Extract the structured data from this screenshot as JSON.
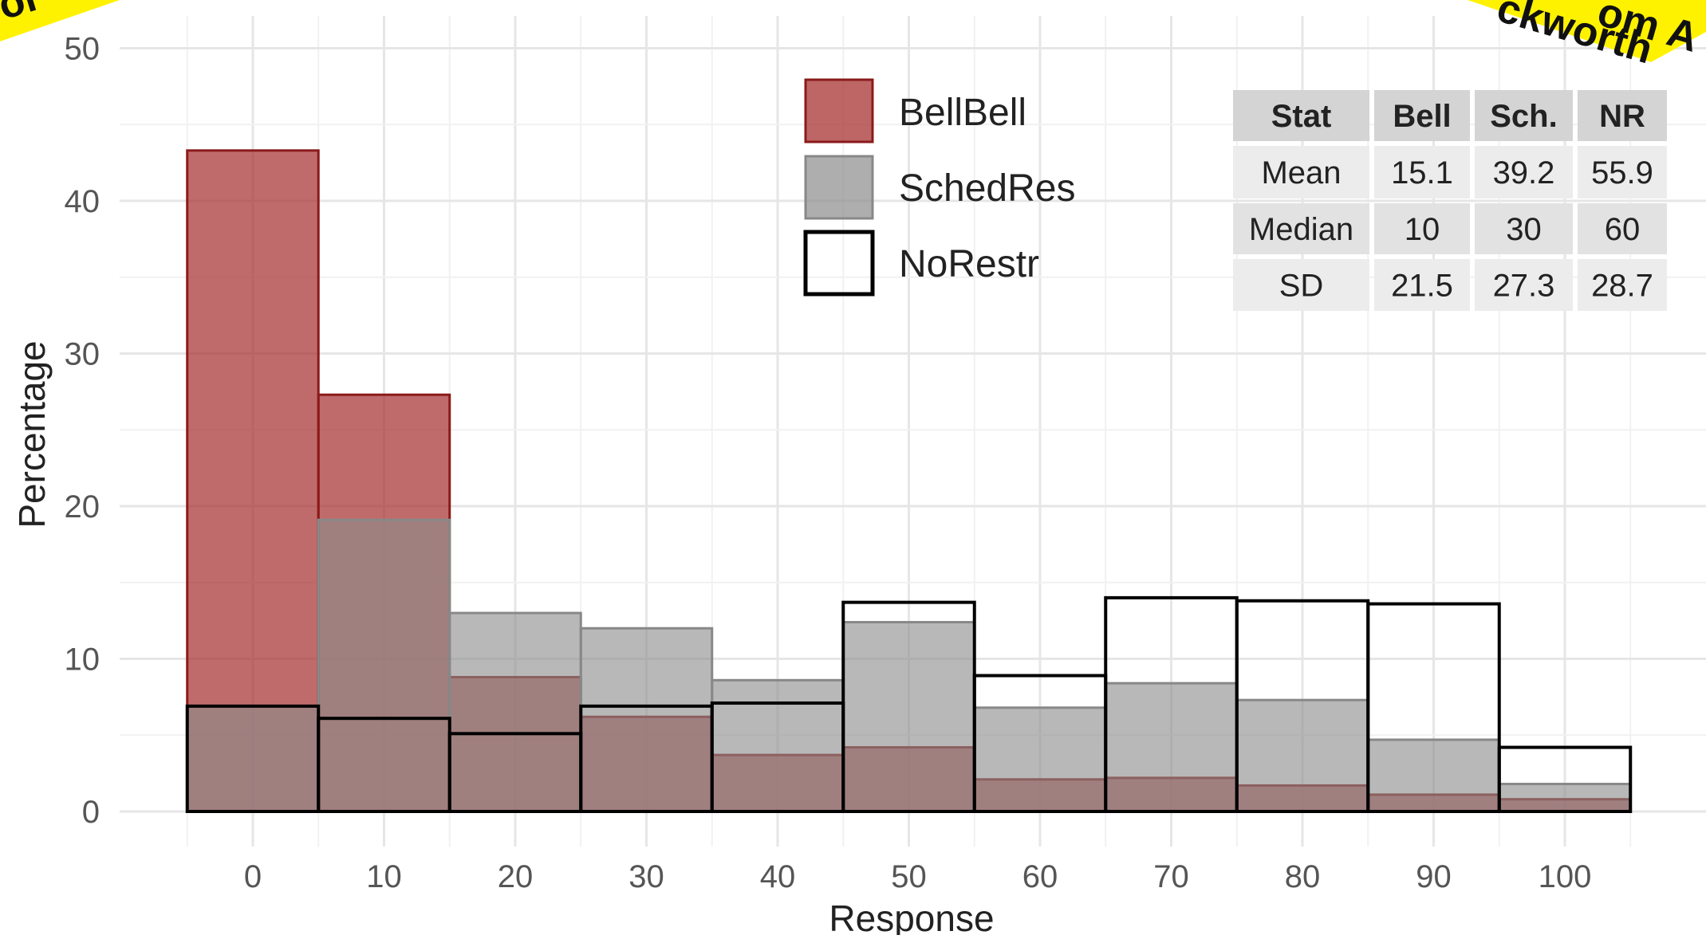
{
  "chart_data": {
    "type": "bar",
    "subtype": "overlapping histogram",
    "xlabel": "Response",
    "ylabel": "Percentage",
    "xlim": [
      -5,
      105
    ],
    "ylim": [
      0,
      50
    ],
    "x_ticks": [
      0,
      10,
      20,
      30,
      40,
      50,
      60,
      70,
      80,
      90,
      100
    ],
    "y_ticks": [
      0,
      10,
      20,
      30,
      40,
      50
    ],
    "bin_centers": [
      0,
      10,
      20,
      30,
      40,
      50,
      60,
      70,
      80,
      90,
      100
    ],
    "bin_width": 10,
    "grid": true,
    "legend_position": "top-center",
    "series": [
      {
        "name": "BellBell",
        "fill": "#a83232",
        "stroke": "#8b1a1a",
        "values": [
          43.3,
          27.3,
          8.8,
          6.2,
          3.7,
          4.2,
          2.1,
          2.2,
          1.7,
          1.1,
          0.8
        ]
      },
      {
        "name": "SchedRes",
        "fill": "#8c8c8c",
        "stroke": "#888888",
        "values": [
          6.9,
          19.1,
          13.0,
          12.0,
          8.6,
          12.4,
          6.8,
          8.4,
          7.3,
          4.7,
          1.8
        ]
      },
      {
        "name": "NoRestr",
        "fill": "none",
        "stroke": "#000000",
        "values": [
          6.9,
          6.1,
          5.1,
          6.9,
          7.1,
          13.7,
          8.9,
          14.0,
          13.8,
          13.6,
          4.2
        ]
      }
    ],
    "summary_table": {
      "headers": [
        "Stat",
        "Bell",
        "Sch.",
        "NR"
      ],
      "rows": [
        [
          "Mean",
          "15.1",
          "39.2",
          "55.9"
        ],
        [
          "Median",
          "10",
          "30",
          "60"
        ],
        [
          "SD",
          "21.5",
          "27.3",
          "28.7"
        ]
      ]
    }
  },
  "banners": {
    "left_text": "for",
    "right_line1": "om A",
    "right_line2": "ckworth",
    "color": "#fff200"
  }
}
